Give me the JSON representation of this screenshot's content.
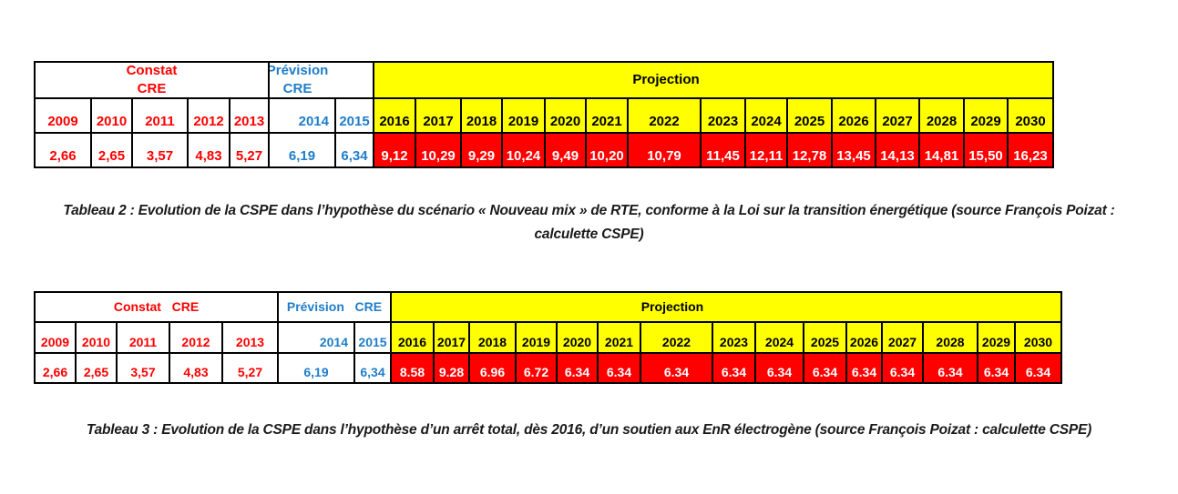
{
  "colors": {
    "constat_text": "#fe0000",
    "prevision_text": "#1f7dc8",
    "projection_header_bg": "#ffff00",
    "projection_value_bg": "#fe0000",
    "projection_value_text": "#ffffff",
    "border": "#000000",
    "caption_text": "#1a1a1a"
  },
  "tables": [
    {
      "name": "tableau-2",
      "header": {
        "constat": "Constat\nCRE",
        "prevision": "Prévision\nCRE",
        "projection": "Projection"
      },
      "constat": {
        "years": [
          "2009",
          "2010",
          "2011",
          "2012",
          "2013"
        ],
        "values": [
          "2,66",
          "2,65",
          "3,57",
          "4,83",
          "5,27"
        ]
      },
      "prevision": {
        "years": [
          "2014",
          "2015"
        ],
        "values": [
          "6,19",
          "6,34"
        ]
      },
      "projection": {
        "years": [
          "2016",
          "2017",
          "2018",
          "2019",
          "2020",
          "2021",
          "2022",
          "2023",
          "2024",
          "2025",
          "2026",
          "2027",
          "2028",
          "2029",
          "2030"
        ],
        "values": [
          "9,12",
          "10,29",
          "9,29",
          "10,24",
          "9,49",
          "10,20",
          "10,79",
          "11,45",
          "12,11",
          "12,78",
          "13,45",
          "14,13",
          "14,81",
          "15,50",
          "16,23"
        ]
      },
      "caption": "Tableau 2 : Evolution de la CSPE dans l’hypothèse du scénario « Nouveau mix » de RTE, conforme à la Loi sur la transition énergétique (source François Poizat : calculette CSPE)"
    },
    {
      "name": "tableau-3",
      "header": {
        "constat": "Constat   CRE",
        "prevision": "Prévision   CRE",
        "projection": "Projection"
      },
      "constat": {
        "years": [
          "2009",
          "2010",
          "2011",
          "2012",
          "2013"
        ],
        "values": [
          "2,66",
          "2,65",
          "3,57",
          "4,83",
          "5,27"
        ]
      },
      "prevision": {
        "years": [
          "2014",
          "2015"
        ],
        "values": [
          "6,19",
          "6,34"
        ]
      },
      "projection": {
        "years": [
          "2016",
          "2017",
          "2018",
          "2019",
          "2020",
          "2021",
          "2022",
          "2023",
          "2024",
          "2025",
          "2026",
          "2027",
          "2028",
          "2029",
          "2030"
        ],
        "values": [
          "8.58",
          "9.28",
          "6.96",
          "6.72",
          "6.34",
          "6.34",
          "6.34",
          "6.34",
          "6.34",
          "6.34",
          "6.34",
          "6.34",
          "6.34",
          "6.34",
          "6.34"
        ]
      },
      "caption": "Tableau 3 : Evolution de la CSPE dans l’hypothèse d’un arrêt total, dès 2016, d’un soutien aux EnR électrogène (source François Poizat : calculette CSPE)"
    }
  ]
}
